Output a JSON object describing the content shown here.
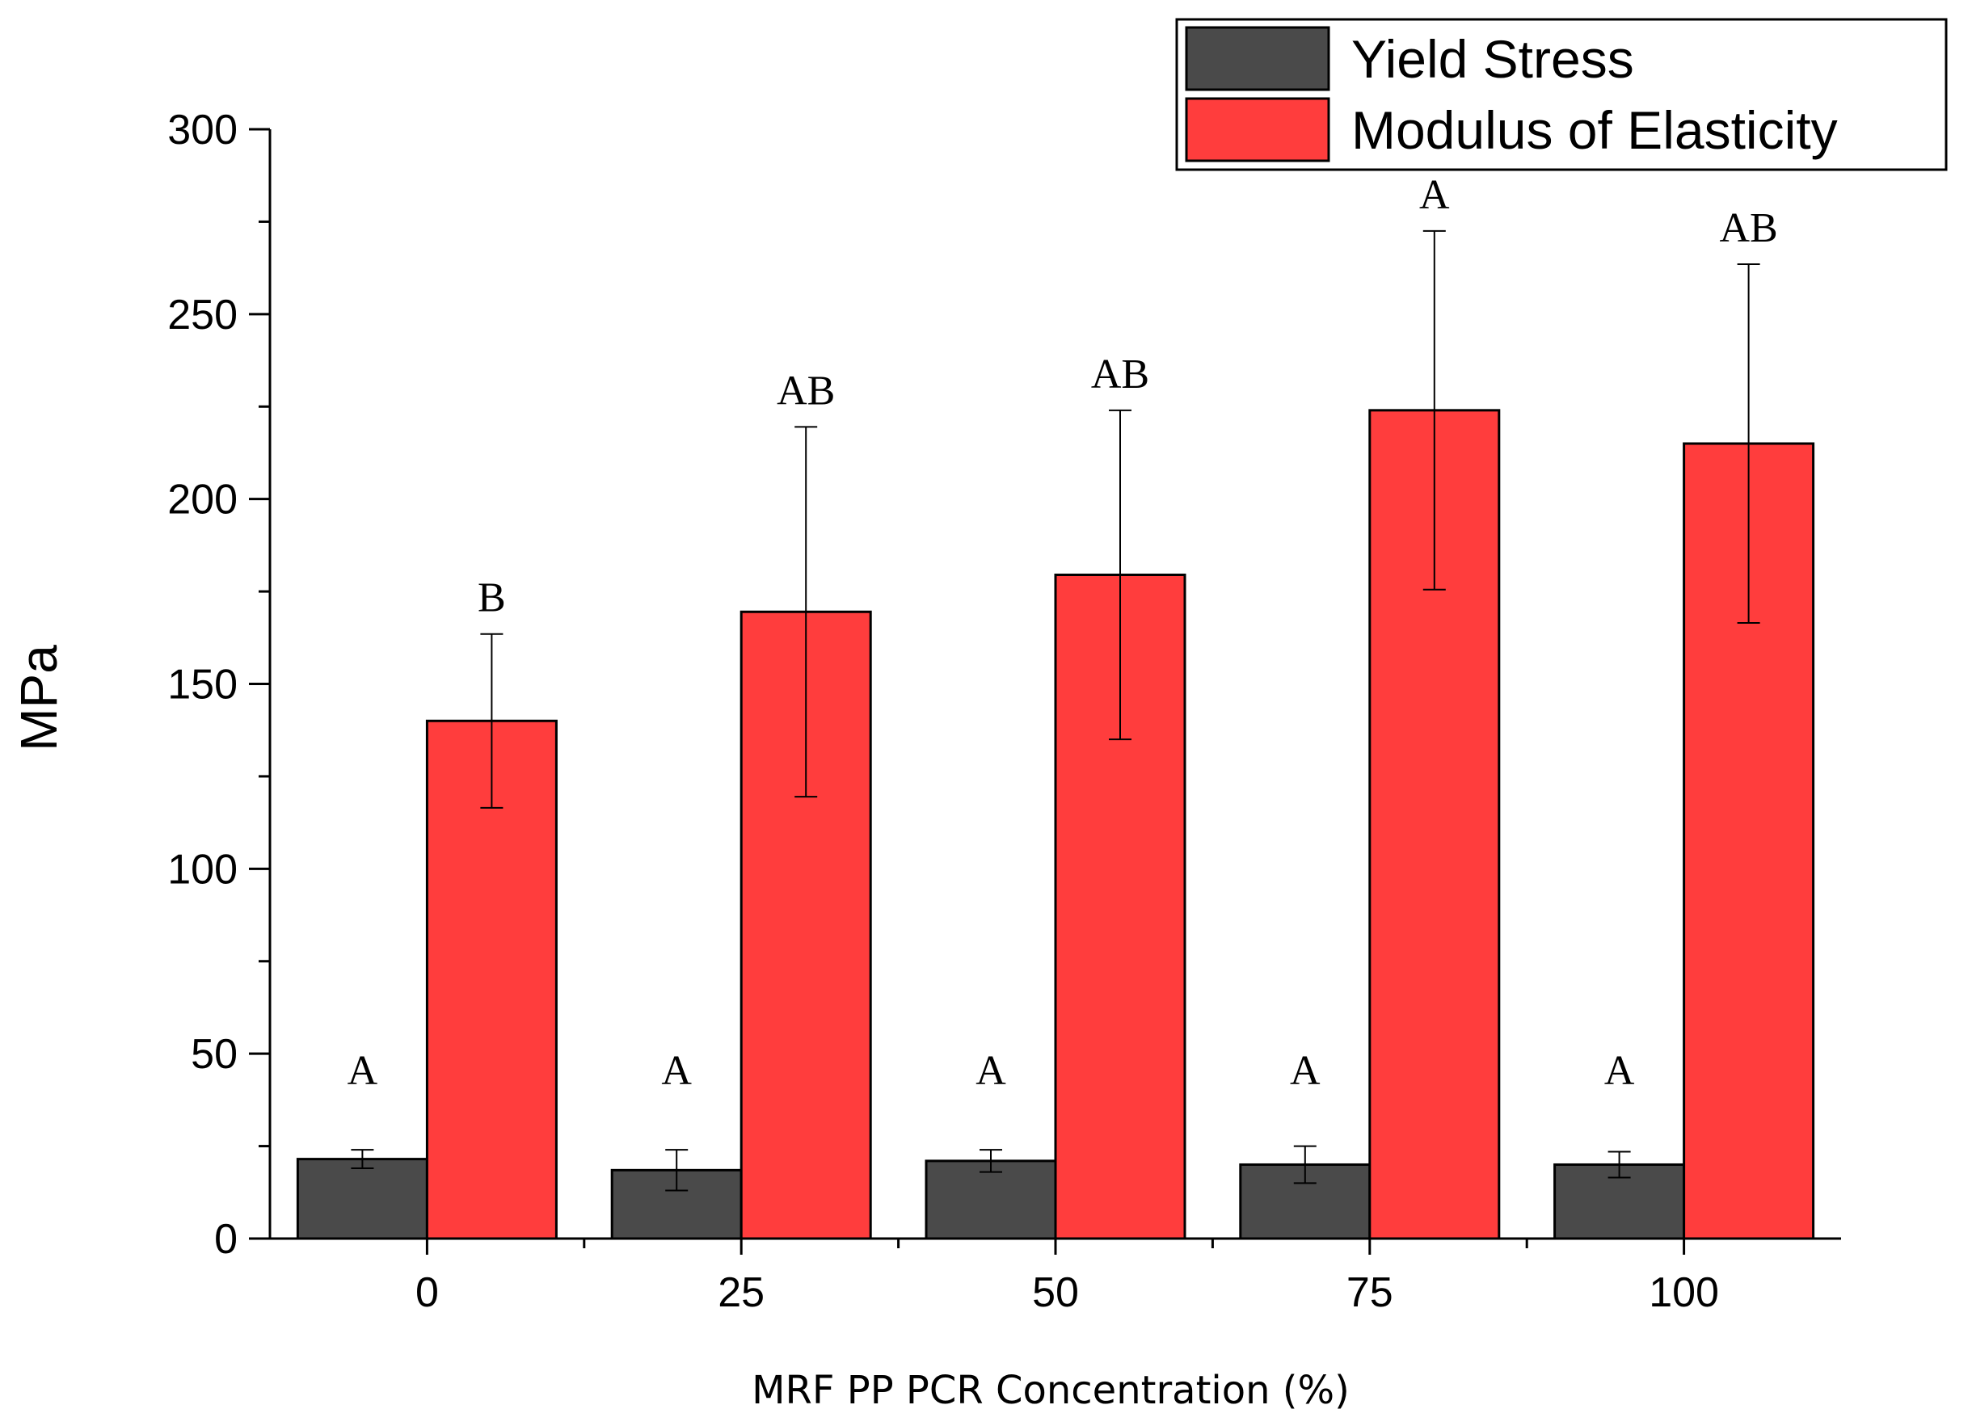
{
  "chart_data": {
    "type": "bar",
    "title": "",
    "xlabel": "MRF PP PCR Concentration (%)",
    "ylabel": "MPa",
    "ylim": [
      0,
      300
    ],
    "yticks": [
      0,
      50,
      100,
      150,
      200,
      250,
      300
    ],
    "categories": [
      "0",
      "25",
      "50",
      "75",
      "100"
    ],
    "legend_position": "top-right",
    "series": [
      {
        "name": "Yield Stress",
        "color": "#4a4a4a",
        "values": [
          21.5,
          18.5,
          21,
          20,
          20
        ],
        "errors": [
          2.5,
          5.5,
          3,
          5,
          3.5
        ],
        "significance": [
          "A",
          "A",
          "A",
          "A",
          "A"
        ]
      },
      {
        "name": "Modulus of Elasticity",
        "color": "#ff3d3d",
        "values": [
          140,
          169.5,
          179.5,
          224,
          215
        ],
        "errors": [
          23.5,
          50,
          44.5,
          48.5,
          48.5
        ],
        "significance": [
          "B",
          "AB",
          "AB",
          "A",
          "AB"
        ]
      }
    ]
  }
}
